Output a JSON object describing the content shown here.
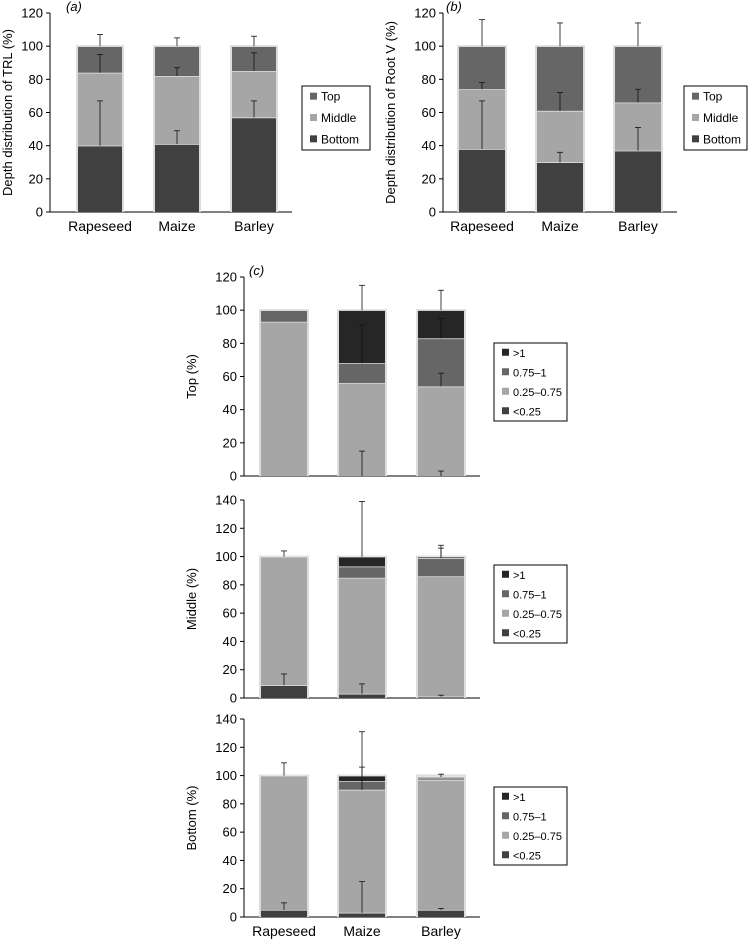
{
  "chart_data": [
    {
      "type": "bar",
      "stacked": true,
      "panel_label": "(a)",
      "ylabel": "Depth distribution of TRL (%)",
      "xlabel": "",
      "ylim": [
        0,
        120
      ],
      "yticks": [
        0,
        20,
        40,
        60,
        80,
        100,
        120
      ],
      "categories": [
        "Rapeseed",
        "Maize",
        "Barley"
      ],
      "legend_position": "right",
      "series": [
        {
          "name": "Bottom",
          "color": "#404040",
          "values": [
            40,
            41,
            57
          ],
          "error": [
            27,
            8,
            10
          ]
        },
        {
          "name": "Middle",
          "color": "#a6a6a6",
          "values": [
            44,
            41,
            28
          ],
          "error": [
            11,
            5,
            11
          ]
        },
        {
          "name": "Top",
          "color": "#666666",
          "values": [
            16,
            18,
            15
          ],
          "error": [
            7,
            5,
            6
          ]
        }
      ]
    },
    {
      "type": "bar",
      "stacked": true,
      "panel_label": "(b)",
      "ylabel": "Depth distribution of Root V (%)",
      "xlabel": "",
      "ylim": [
        0,
        120
      ],
      "yticks": [
        0,
        20,
        40,
        60,
        80,
        100,
        120
      ],
      "categories": [
        "Rapeseed",
        "Maize",
        "Barley"
      ],
      "legend_position": "right",
      "series": [
        {
          "name": "Bottom",
          "color": "#404040",
          "values": [
            38,
            30,
            37
          ],
          "error": [
            29,
            6,
            14
          ]
        },
        {
          "name": "Middle",
          "color": "#a6a6a6",
          "values": [
            36,
            31,
            29
          ],
          "error": [
            4,
            11,
            8
          ]
        },
        {
          "name": "Top",
          "color": "#666666",
          "values": [
            26,
            39,
            34
          ],
          "error": [
            16,
            14,
            14
          ]
        }
      ]
    },
    {
      "type": "bar",
      "stacked": true,
      "panel_label": "(c)",
      "ylabel": "Top (%)",
      "xlabel": "",
      "ylim": [
        0,
        120
      ],
      "yticks": [
        0,
        20,
        40,
        60,
        80,
        100,
        120
      ],
      "categories": [
        "Rapeseed",
        "Maize",
        "Barley"
      ],
      "show_category_labels": false,
      "legend_position": "right",
      "series": [
        {
          "name": "<0.25",
          "color": "#404040",
          "values": [
            0,
            0,
            0
          ],
          "error": [
            0,
            15,
            3
          ]
        },
        {
          "name": "0.25–0.75",
          "color": "#a6a6a6",
          "values": [
            93,
            56,
            54
          ],
          "error": [
            0,
            0,
            8
          ]
        },
        {
          "name": "0.75–1",
          "color": "#666666",
          "values": [
            7,
            12,
            29
          ],
          "error": [
            0,
            23,
            12
          ]
        },
        {
          "name": ">1",
          "color": "#262626",
          "values": [
            0,
            32,
            17
          ],
          "error": [
            0,
            15,
            12
          ]
        }
      ]
    },
    {
      "type": "bar",
      "stacked": true,
      "panel_label": "",
      "ylabel": "Middle (%)",
      "xlabel": "",
      "ylim": [
        0,
        140
      ],
      "yticks": [
        0,
        20,
        40,
        60,
        80,
        100,
        120,
        140
      ],
      "categories": [
        "Rapeseed",
        "Maize",
        "Barley"
      ],
      "show_category_labels": false,
      "legend_position": "right",
      "series": [
        {
          "name": "<0.25",
          "color": "#404040",
          "values": [
            9,
            3,
            1
          ],
          "error": [
            8,
            7,
            1
          ]
        },
        {
          "name": "0.25–0.75",
          "color": "#a6a6a6",
          "values": [
            91,
            82,
            85
          ],
          "error": [
            0,
            0,
            0
          ]
        },
        {
          "name": "0.75–1",
          "color": "#666666",
          "values": [
            0,
            8,
            13
          ],
          "error": [
            0,
            0,
            7
          ]
        },
        {
          "name": ">1",
          "color": "#262626",
          "values": [
            0,
            7,
            1
          ],
          "error": [
            4,
            39,
            8
          ]
        }
      ]
    },
    {
      "type": "bar",
      "stacked": true,
      "panel_label": "",
      "ylabel": "Bottom (%)",
      "xlabel": "",
      "ylim": [
        0,
        140
      ],
      "yticks": [
        0,
        20,
        40,
        60,
        80,
        100,
        120,
        140
      ],
      "categories": [
        "Rapeseed",
        "Maize",
        "Barley"
      ],
      "show_category_labels": true,
      "legend_position": "right",
      "series": [
        {
          "name": "<0.25",
          "color": "#404040",
          "values": [
            5,
            3,
            5
          ],
          "error": [
            5,
            22,
            1
          ]
        },
        {
          "name": "0.25–0.75",
          "color": "#a6a6a6",
          "values": [
            95,
            87,
            92
          ],
          "error": [
            0,
            16,
            0
          ]
        },
        {
          "name": "0.75–1",
          "color": "#666666",
          "values": [
            0,
            6,
            1
          ],
          "error": [
            0,
            0,
            0
          ]
        },
        {
          "name": ">1",
          "color": "#262626",
          "values": [
            0,
            4,
            1
          ],
          "error": [
            9,
            31,
            2
          ]
        }
      ]
    }
  ]
}
